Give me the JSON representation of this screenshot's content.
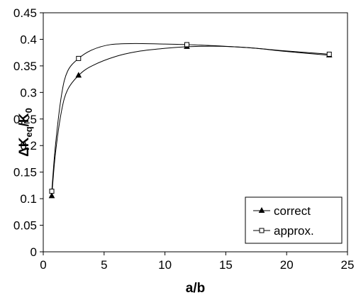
{
  "chart_data": {
    "type": "line",
    "xlabel": "a/b",
    "ylabel": {
      "delta": "Δ",
      "main": "K",
      "sub": "eq",
      "rest": "/K",
      "sub2": "0"
    },
    "xlim": [
      0,
      25
    ],
    "ylim": [
      0,
      0.45
    ],
    "xticks": [
      0,
      5,
      10,
      15,
      20,
      25
    ],
    "yticks": [
      0,
      0.05,
      0.1,
      0.15,
      0.2,
      0.25,
      0.3,
      0.35,
      0.4,
      0.45
    ],
    "xtick_labels": [
      "0",
      "5",
      "10",
      "15",
      "20",
      "25"
    ],
    "ytick_labels": [
      "0",
      "0.05",
      "0.1",
      "0.15",
      "0.2",
      "0.25",
      "0.3",
      "0.35",
      "0.4",
      "0.45"
    ],
    "grid": false,
    "legend_position": "bottom-right",
    "series": [
      {
        "name": "correct",
        "marker": "triangle",
        "marker_fill": "#000000",
        "color": "#000000",
        "x": [
          0.7,
          2.9,
          11.8,
          23.5
        ],
        "y": [
          0.105,
          0.332,
          0.386,
          0.37
        ],
        "curve_x": [
          0.7,
          1.0,
          1.5,
          2.0,
          2.9,
          4.0,
          6.0,
          8.0,
          10.0,
          11.8,
          14.0,
          17.0,
          20.0,
          23.5
        ],
        "curve_y": [
          0.105,
          0.185,
          0.265,
          0.305,
          0.332,
          0.35,
          0.368,
          0.378,
          0.383,
          0.386,
          0.387,
          0.384,
          0.377,
          0.37
        ]
      },
      {
        "name": "approx.",
        "marker": "square",
        "marker_fill": "#ffffff",
        "color": "#000000",
        "x": [
          0.7,
          2.9,
          11.8,
          23.5
        ],
        "y": [
          0.114,
          0.364,
          0.39,
          0.372
        ],
        "curve_x": [
          0.7,
          1.0,
          1.5,
          2.0,
          2.9,
          4.0,
          5.5,
          7.5,
          10.0,
          11.8,
          14.0,
          17.0,
          20.0,
          23.5
        ],
        "curve_y": [
          0.114,
          0.2,
          0.295,
          0.34,
          0.364,
          0.38,
          0.39,
          0.392,
          0.391,
          0.39,
          0.388,
          0.384,
          0.378,
          0.372
        ]
      }
    ]
  }
}
